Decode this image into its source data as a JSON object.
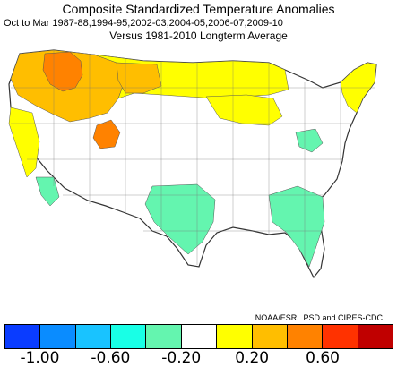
{
  "header": {
    "title": "Composite Standardized Temperature Anomalies",
    "subtitle": "Oct to Mar  1987-88,1994-95,2002-03,2004-05,2006-07,2009-10",
    "versus": "Versus 1981-2010 Longterm Average"
  },
  "credit": "NOAA/ESRL PSD and CIRES-CDC",
  "legend": {
    "colors": [
      "#0a3cff",
      "#0a8cff",
      "#19c3ff",
      "#19ffe6",
      "#64f5af",
      "#ffffff",
      "#ffff00",
      "#ffbe00",
      "#ff8200",
      "#ff3200",
      "#c00000"
    ],
    "ticks": [
      "-1.00",
      "-0.60",
      "-0.20",
      "0.20",
      "0.60"
    ]
  },
  "map": {
    "colors": {
      "land": "#ffffff",
      "border": "#555555",
      "weak_warm": "#ffff00",
      "warm": "#ffbe00",
      "strong_warm": "#ff8200",
      "cool": "#64f5af"
    }
  }
}
